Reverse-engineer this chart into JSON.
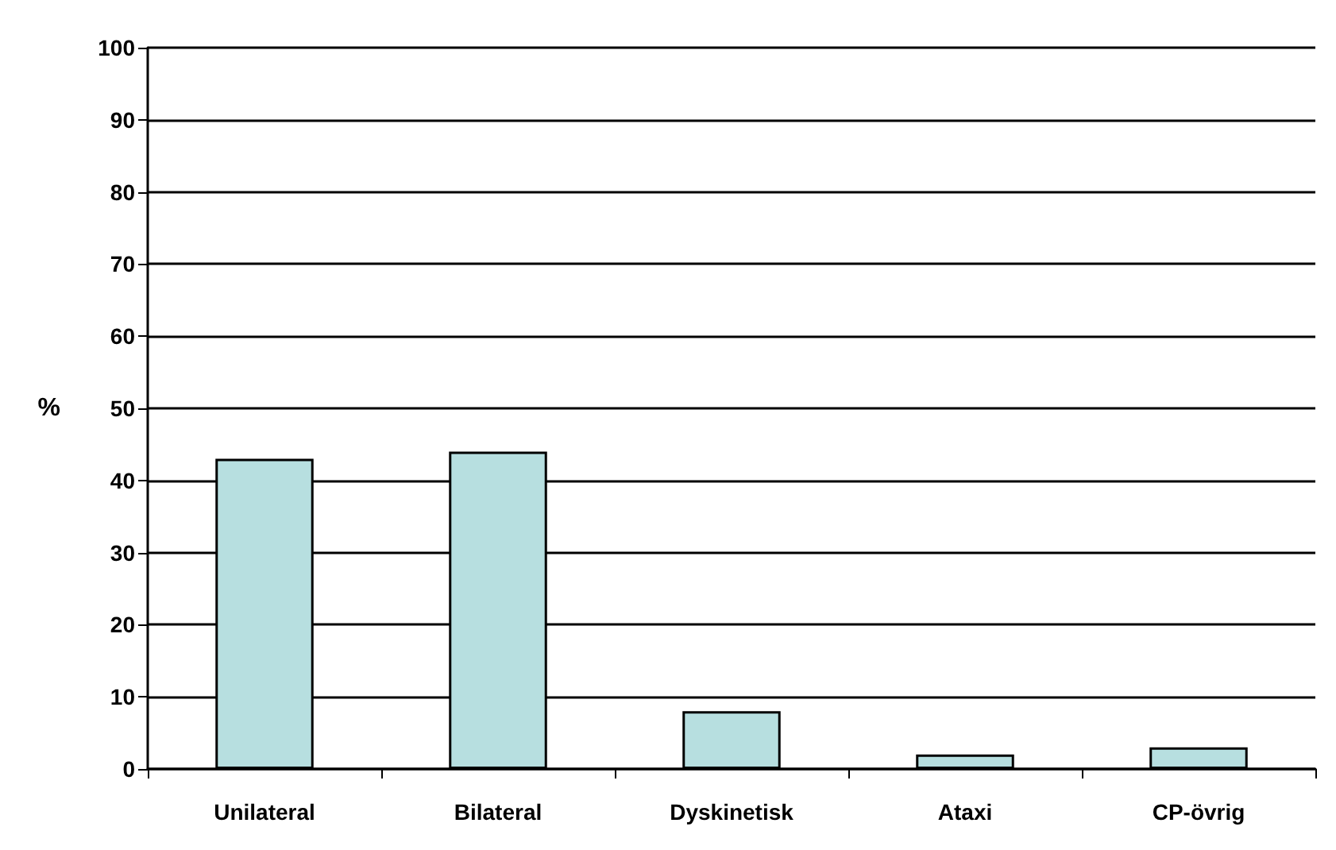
{
  "chart_data": {
    "type": "bar",
    "categories": [
      "Unilateral",
      "Bilateral",
      "Dyskinetisk",
      "Ataxi",
      "CP-övrig"
    ],
    "values": [
      43,
      44,
      8,
      2,
      3
    ],
    "color": "#b7dfe0",
    "ylabel": "%",
    "ylim": [
      0,
      100
    ],
    "yticks": [
      0,
      10,
      20,
      30,
      40,
      50,
      60,
      70,
      80,
      90,
      100
    ],
    "grid": "y"
  }
}
